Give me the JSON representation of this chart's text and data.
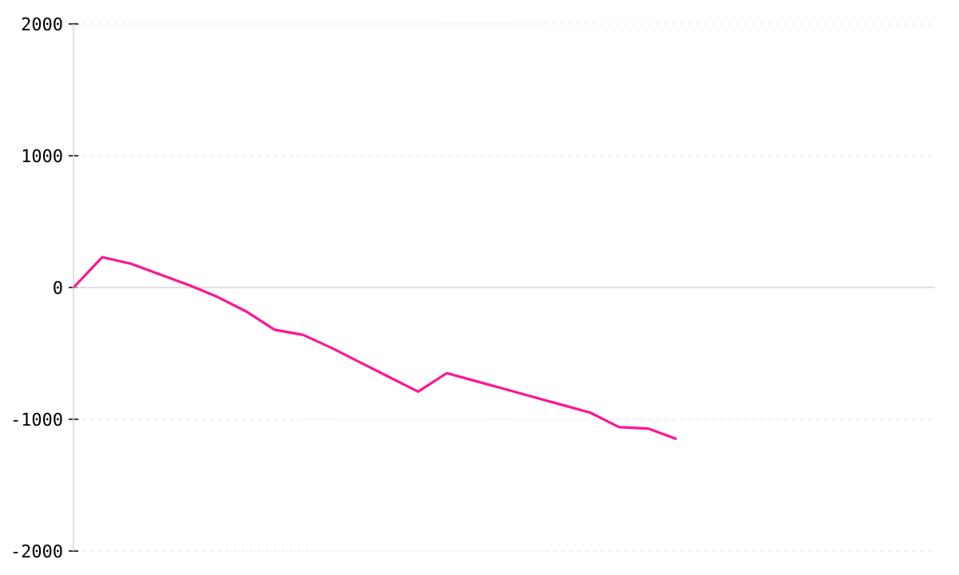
{
  "chart_data": {
    "type": "line",
    "categories": [
      null,
      null,
      null,
      null,
      null,
      null,
      null,
      null,
      null,
      null,
      null,
      null,
      null,
      null,
      null,
      null,
      null,
      null,
      null,
      null,
      null,
      null,
      null,
      null,
      null,
      null,
      null,
      null,
      null,
      null,
      null
    ],
    "series": [
      {
        "color": "#ff1493",
        "values": [
          0,
          230,
          180,
          100,
          20,
          -70,
          -180,
          -320,
          -360,
          -460,
          -570,
          -680,
          -790,
          -650,
          -710,
          -770,
          -830,
          -890,
          -950,
          -1060,
          -1070,
          -1150,
          null,
          null,
          null,
          null,
          null,
          null,
          null,
          null,
          null
        ]
      }
    ],
    "ylim": [
      -2000,
      2000
    ],
    "yticks": [
      -2000,
      -1000,
      0,
      1000,
      2000
    ],
    "tick_labels": "y",
    "grid": "y",
    "marker": "none",
    "line_style": "solid"
  }
}
